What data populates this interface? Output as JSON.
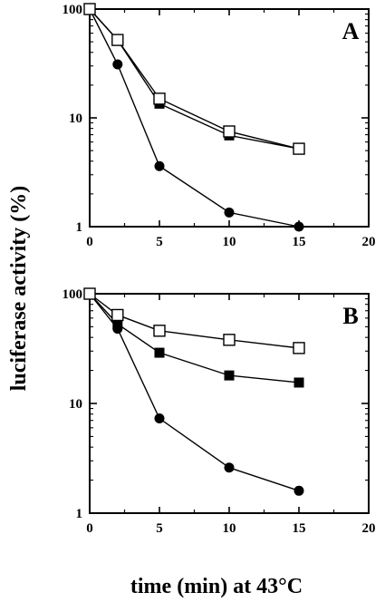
{
  "figure": {
    "ylabel": "luciferase activity (%)",
    "xlabel": "time (min) at 43°C"
  },
  "chart_data": [
    {
      "type": "line",
      "panel_label": "A",
      "xscale": "linear",
      "yscale": "log",
      "xlim": [
        0,
        20
      ],
      "ylim": [
        1,
        100
      ],
      "x_ticks": [
        0,
        5,
        10,
        15,
        20
      ],
      "y_ticks": [
        1,
        10,
        100
      ],
      "grid": false,
      "series": [
        {
          "marker": "open-square",
          "x": [
            0,
            2,
            5,
            10,
            15
          ],
          "y": [
            100,
            52,
            15,
            7.5,
            5.2
          ]
        },
        {
          "marker": "filled-square",
          "x": [
            0,
            2,
            5,
            10,
            15
          ],
          "y": [
            100,
            52,
            13.5,
            6.9,
            5.2
          ]
        },
        {
          "marker": "filled-circle",
          "x": [
            0,
            2,
            5,
            10,
            15
          ],
          "y": [
            100,
            31,
            3.6,
            1.35,
            1.0
          ]
        }
      ]
    },
    {
      "type": "line",
      "panel_label": "B",
      "xscale": "linear",
      "yscale": "log",
      "xlim": [
        0,
        20
      ],
      "ylim": [
        1,
        100
      ],
      "x_ticks": [
        0,
        5,
        10,
        15,
        20
      ],
      "y_ticks": [
        1,
        10,
        100
      ],
      "grid": false,
      "series": [
        {
          "marker": "open-square",
          "x": [
            0,
            2,
            5,
            10,
            15
          ],
          "y": [
            100,
            64,
            46,
            38,
            32
          ]
        },
        {
          "marker": "filled-square",
          "x": [
            0,
            2,
            5,
            10,
            15
          ],
          "y": [
            100,
            53,
            29,
            18,
            15.5
          ]
        },
        {
          "marker": "filled-circle",
          "x": [
            0,
            2,
            5,
            10,
            15
          ],
          "y": [
            100,
            48,
            7.3,
            2.6,
            1.6
          ]
        }
      ]
    }
  ]
}
